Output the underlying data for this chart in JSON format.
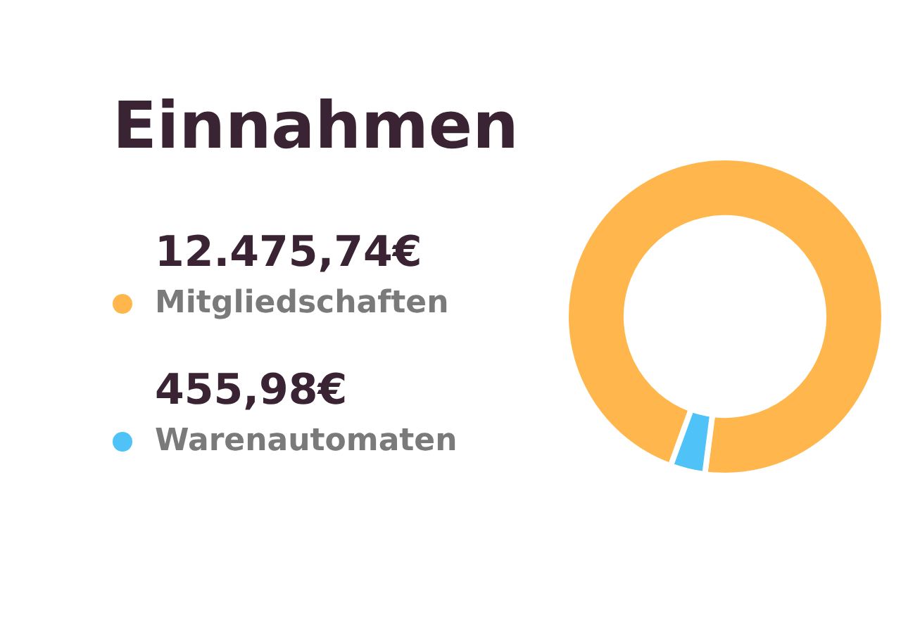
{
  "chart_data": {
    "type": "donut",
    "title": "Einnahmen",
    "categories": [
      "Mitgliedschaften",
      "Warenautomaten"
    ],
    "values": [
      12475.74,
      455.98
    ],
    "colors": [
      "#ffb74d",
      "#4fc3f7"
    ],
    "value_labels": [
      "12.475,74€",
      "455,98€"
    ],
    "legend": "left"
  }
}
